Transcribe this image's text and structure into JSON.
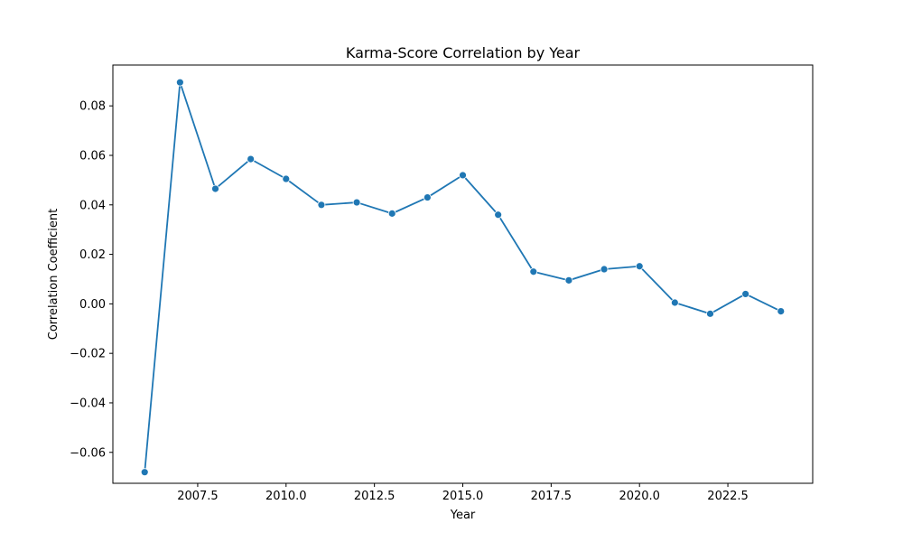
{
  "chart_data": {
    "type": "line",
    "title": "Karma-Score Correlation by Year",
    "xlabel": "Year",
    "ylabel": "Correlation Coefficient",
    "xlim": [
      2005.1,
      2024.9
    ],
    "ylim": [
      -0.0725,
      0.0965
    ],
    "xticks": [
      2007.5,
      2010.0,
      2012.5,
      2015.0,
      2017.5,
      2020.0,
      2022.5
    ],
    "xtick_labels": [
      "2007.5",
      "2010.0",
      "2012.5",
      "2015.0",
      "2017.5",
      "2020.0",
      "2022.5"
    ],
    "yticks": [
      -0.06,
      -0.04,
      -0.02,
      0.0,
      0.02,
      0.04,
      0.06,
      0.08
    ],
    "ytick_labels": [
      "−0.06",
      "−0.04",
      "−0.02",
      "0.00",
      "0.02",
      "0.04",
      "0.06",
      "0.08"
    ],
    "grid": false,
    "series": [
      {
        "color": "#1f77b4",
        "marker": "circle",
        "x": [
          2006,
          2007,
          2008,
          2009,
          2010,
          2011,
          2012,
          2013,
          2014,
          2015,
          2016,
          2017,
          2018,
          2019,
          2020,
          2021,
          2022,
          2023,
          2024
        ],
        "y": [
          -0.068,
          0.0895,
          0.0465,
          0.0585,
          0.0505,
          0.04,
          0.041,
          0.0365,
          0.043,
          0.052,
          0.036,
          0.013,
          0.0095,
          0.014,
          0.0152,
          0.0005,
          -0.004,
          0.004,
          -0.003
        ]
      }
    ]
  }
}
